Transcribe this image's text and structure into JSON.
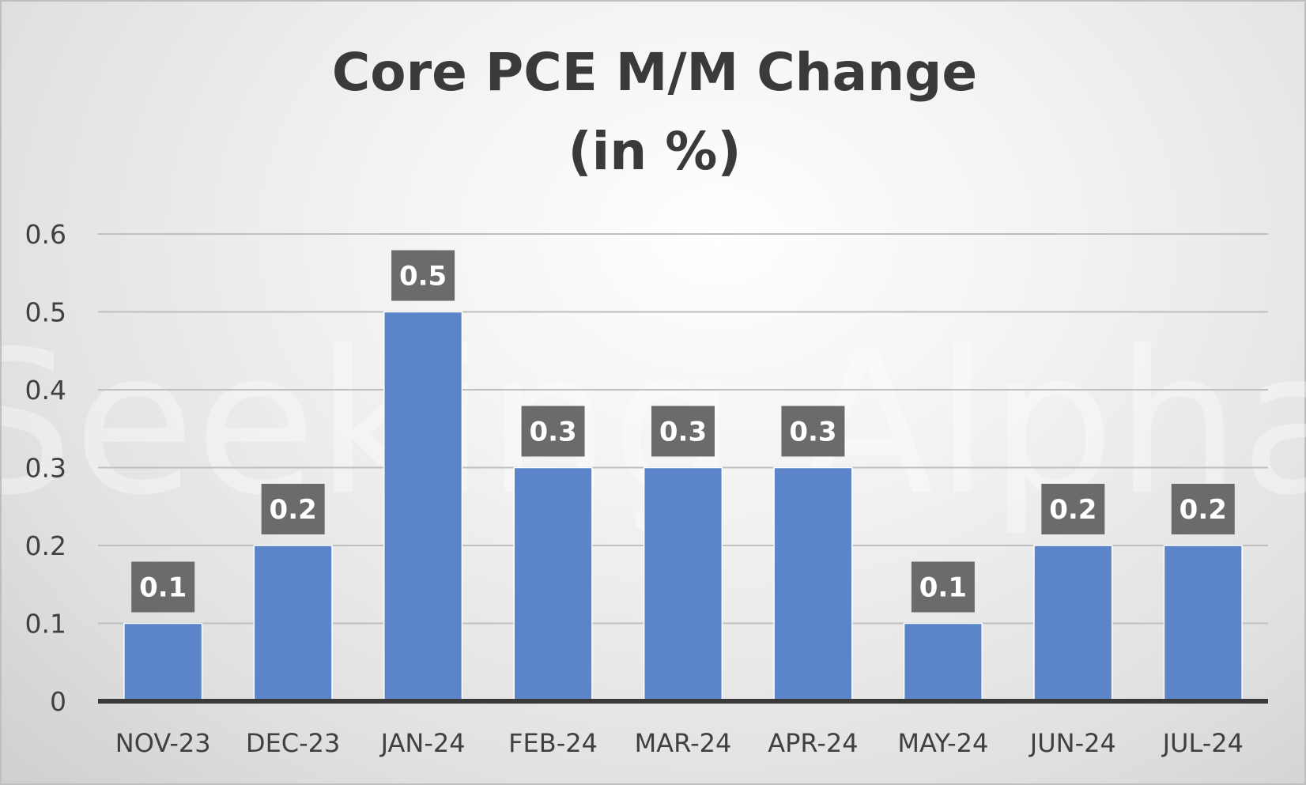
{
  "chart_data": {
    "type": "bar",
    "title": [
      "Core PCE M/M Change",
      "(in %)"
    ],
    "categories": [
      "NOV-23",
      "DEC-23",
      "JAN-24",
      "FEB-24",
      "MAR-24",
      "APR-24",
      "MAY-24",
      "JUN-24",
      "JUL-24"
    ],
    "values": [
      0.1,
      0.2,
      0.5,
      0.3,
      0.3,
      0.3,
      0.1,
      0.2,
      0.2
    ],
    "data_labels": [
      "0.1",
      "0.2",
      "0.5",
      "0.3",
      "0.3",
      "0.3",
      "0.1",
      "0.2",
      "0.2"
    ],
    "y_ticks": [
      "0",
      "0.1",
      "0.2",
      "0.3",
      "0.4",
      "0.5",
      "0.6"
    ],
    "ylim": [
      0,
      0.6
    ],
    "xlabel": "",
    "ylabel": "",
    "grid": true,
    "legend": "none",
    "watermark": "Seeking Alpha",
    "colors": {
      "bar": "#5b84c9",
      "bar_edge": "#ffffff",
      "label_box": "#6b6b6b",
      "gridline": "#bfbfbf",
      "axis": "#3a3a3a"
    }
  }
}
